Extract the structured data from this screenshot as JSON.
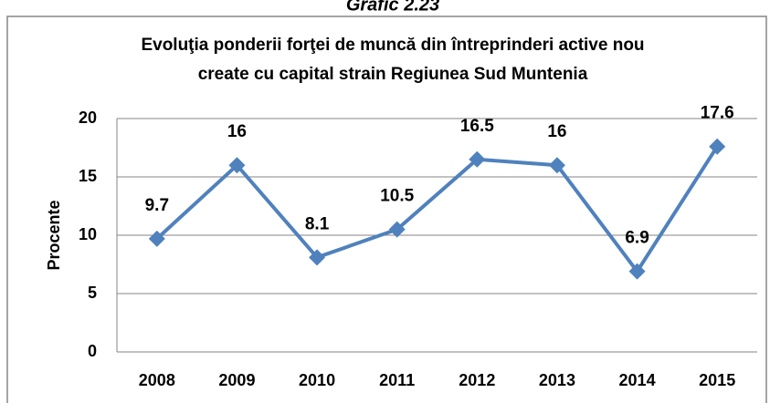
{
  "caption": "Grafic 2.23",
  "chart_data": {
    "type": "line",
    "title": [
      "Evoluţia ponderii forţei de muncă din întreprinderi active nou",
      "create cu capital strain Regiunea Sud Muntenia"
    ],
    "ylabel": "Procente",
    "categories": [
      "2008",
      "2009",
      "2010",
      "2011",
      "2012",
      "2013",
      "2014",
      "2015"
    ],
    "series": [
      {
        "name": "Procente",
        "color": "#4f81bd",
        "values": [
          9.7,
          16,
          8.1,
          10.5,
          16.5,
          16,
          6.9,
          17.6
        ]
      }
    ],
    "ylim": [
      0,
      20
    ],
    "yticks": [
      0,
      5,
      10,
      15,
      20
    ],
    "grid": true
  }
}
